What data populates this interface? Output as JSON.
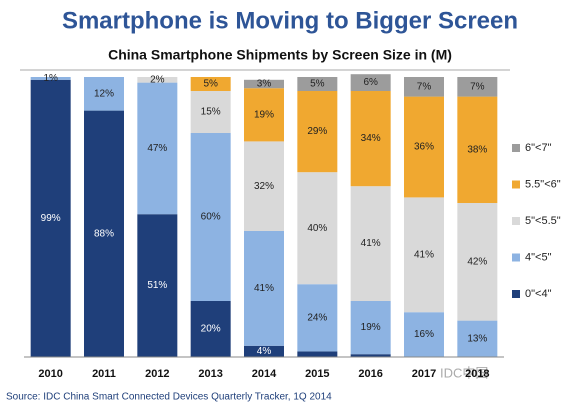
{
  "chart_data": {
    "type": "stacked_bar",
    "title": "Smartphone is Moving to Bigger Screen",
    "subtitle": "China Smartphone Shipments by Screen Size in (M)",
    "source": "Source: IDC China Smart Connected Devices Quarterly Tracker, 1Q 2014",
    "watermark": "IDC中国",
    "categories": [
      "2010",
      "2011",
      "2012",
      "2013",
      "2014",
      "2015",
      "2016",
      "2017",
      "2018"
    ],
    "ylim": [
      0,
      100
    ],
    "legend": "right",
    "series": [
      {
        "name": "0\"<4\"",
        "color": "#1f3f7a",
        "values": [
          99,
          88,
          51,
          20,
          4,
          2,
          1,
          0,
          0
        ],
        "value_labels": [
          "99%",
          "88%",
          "51%",
          "20%",
          "4%",
          null,
          null,
          null,
          null
        ]
      },
      {
        "name": "4\"<5\"",
        "color": "#8db3e2",
        "values": [
          1,
          12,
          47,
          60,
          41,
          24,
          19,
          16,
          13
        ],
        "value_labels": [
          "1%",
          "12%",
          "47%",
          "60%",
          "41%",
          "24%",
          "19%",
          "16%",
          "13%"
        ]
      },
      {
        "name": "5\"<5.5\"",
        "color": "#d9d9d9",
        "values": [
          0,
          0,
          2,
          15,
          32,
          40,
          41,
          41,
          42
        ],
        "value_labels": [
          null,
          null,
          "2%",
          "15%",
          "32%",
          "40%",
          "41%",
          "41%",
          "42%"
        ]
      },
      {
        "name": "5.5\"<6\"",
        "color": "#f0a830",
        "values": [
          0,
          0,
          0,
          5,
          19,
          29,
          34,
          36,
          38
        ],
        "value_labels": [
          null,
          null,
          null,
          "5%",
          "19%",
          "29%",
          "34%",
          "36%",
          "38%"
        ]
      },
      {
        "name": "6\"<7\"",
        "color": "#9c9c9c",
        "values": [
          0,
          0,
          0,
          0,
          3,
          5,
          6,
          7,
          7
        ],
        "value_labels": [
          null,
          null,
          null,
          null,
          "3%",
          "5%",
          "6%",
          "7%",
          "7%"
        ]
      }
    ]
  }
}
